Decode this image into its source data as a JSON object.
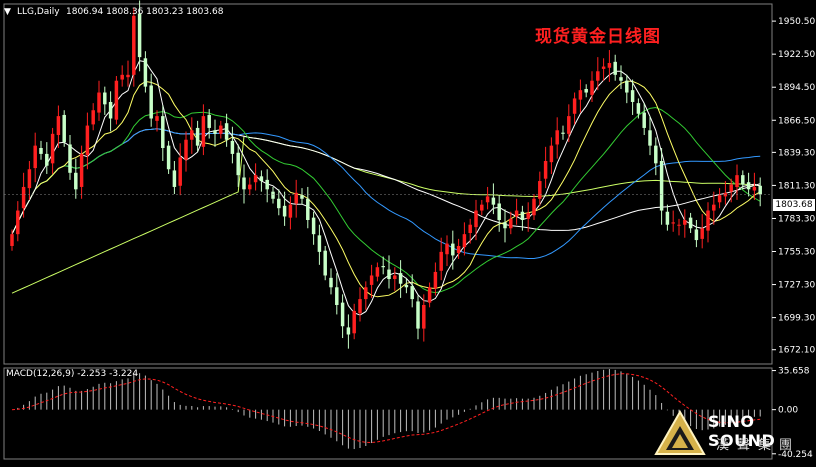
{
  "header": {
    "symbol": "LLG,Daily",
    "ohlc": "1806.94 1808.36 1803.23 1803.68",
    "title": "现货黄金日线图"
  },
  "price_tag": "1803.68",
  "macd_header": "MACD(12,26,9) -2.253 -3.224",
  "logo": {
    "name": "SINO SOUND",
    "sub": "漢聲集團"
  },
  "colors": {
    "up": "#ff2020",
    "down": "#c8ffc8",
    "ma5": "#ffffff",
    "ma10": "#ffff66",
    "ma20": "#33cc33",
    "ma40": "#3399ff",
    "ma60": "#ffffff",
    "ma120": "#ccff66",
    "macd_signal": "#ff2020"
  },
  "chart_data": [
    {
      "type": "candlestick",
      "title": "现货黄金日线图",
      "ylim": [
        1660,
        1965
      ],
      "y_ticks": [
        "1950.50",
        "1922.50",
        "1894.50",
        "1866.50",
        "1839.30",
        "1811.30",
        "1783.30",
        "1755.30",
        "1727.30",
        "1699.30",
        "1672.10"
      ],
      "y_tick_values": [
        1950.5,
        1922.5,
        1894.5,
        1866.5,
        1839.3,
        1811.3,
        1783.3,
        1755.3,
        1727.3,
        1699.3,
        1672.1
      ],
      "last_price": 1803.68,
      "close": [
        1770,
        1790,
        1810,
        1825,
        1845,
        1838,
        1828,
        1855,
        1870,
        1848,
        1822,
        1808,
        1838,
        1862,
        1875,
        1890,
        1880,
        1868,
        1900,
        1905,
        1905,
        1955,
        1920,
        1895,
        1868,
        1870,
        1843,
        1825,
        1810,
        1835,
        1850,
        1858,
        1845,
        1870,
        1860,
        1855,
        1862,
        1850,
        1838,
        1820,
        1808,
        1812,
        1820,
        1815,
        1808,
        1800,
        1792,
        1785,
        1795,
        1805,
        1800,
        1782,
        1770,
        1755,
        1735,
        1725,
        1710,
        1692,
        1685,
        1705,
        1715,
        1725,
        1735,
        1742,
        1742,
        1732,
        1735,
        1728,
        1725,
        1715,
        1690,
        1710,
        1725,
        1738,
        1755,
        1762,
        1752,
        1760,
        1770,
        1778,
        1790,
        1795,
        1802,
        1795,
        1782,
        1775,
        1783,
        1790,
        1782,
        1788,
        1800,
        1815,
        1832,
        1845,
        1858,
        1855,
        1870,
        1885,
        1892,
        1890,
        1900,
        1908,
        1912,
        1915,
        1905,
        1900,
        1890,
        1882,
        1872,
        1860,
        1845,
        1830,
        1790,
        1778,
        1780,
        1778,
        1782,
        1775,
        1765,
        1775,
        1790,
        1795,
        1803,
        1805,
        1812,
        1820,
        1812,
        1808,
        1810,
        1803.68
      ],
      "macd_ylim": [
        -45,
        38
      ],
      "macd_ticks": [
        "35.658",
        "0.00",
        "-40.254"
      ]
    }
  ]
}
